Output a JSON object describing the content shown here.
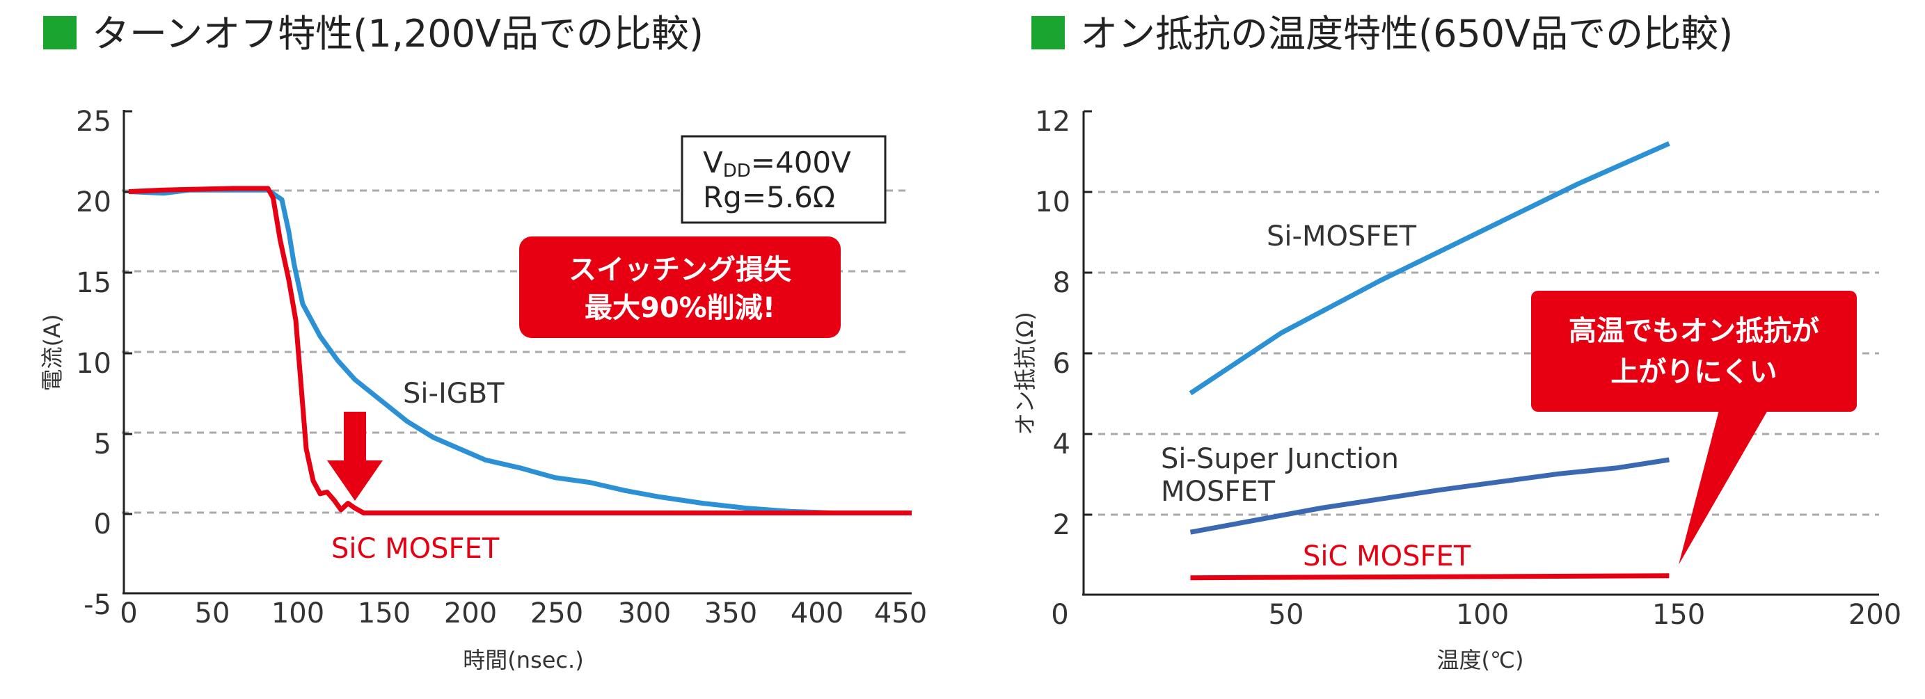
{
  "colors": {
    "green": "#1aa531",
    "blue": "#2b91d4",
    "darkblue": "#3a69b2",
    "red": "#e60012",
    "grid": "#a9a9a9"
  },
  "chart_data": [
    {
      "type": "line",
      "title": "ターンオフ特性(1,200V品での比較)",
      "xlabel": "時間(nsec.)",
      "ylabel": "電流(A)",
      "xlim": [
        0,
        450
      ],
      "ylim": [
        -5,
        25
      ],
      "x_ticks": [
        "0",
        "50",
        "100",
        "150",
        "200",
        "250",
        "300",
        "350",
        "400",
        "450"
      ],
      "y_ticks": [
        "25",
        "20",
        "15",
        "10",
        "5",
        "0",
        "-5"
      ],
      "grid": "horizontal dashed at 20, 15, 10, 5, 0",
      "series": [
        {
          "name": "Si-IGBT",
          "color": "#2b91d4",
          "points": [
            [
              0,
              20
            ],
            [
              20,
              19.9
            ],
            [
              35,
              20.1
            ],
            [
              60,
              20.1
            ],
            [
              80,
              20.1
            ],
            [
              88,
              19.5
            ],
            [
              92,
              17.5
            ],
            [
              95,
              15.5
            ],
            [
              100,
              13
            ],
            [
              110,
              11
            ],
            [
              120,
              9.5
            ],
            [
              130,
              8.3
            ],
            [
              145,
              7
            ],
            [
              160,
              5.7
            ],
            [
              175,
              4.7
            ],
            [
              190,
              4
            ],
            [
              205,
              3.3
            ],
            [
              225,
              2.8
            ],
            [
              245,
              2.2
            ],
            [
              265,
              1.9
            ],
            [
              285,
              1.4
            ],
            [
              305,
              1.0
            ],
            [
              330,
              0.6
            ],
            [
              355,
              0.3
            ],
            [
              380,
              0.1
            ],
            [
              405,
              0
            ],
            [
              450,
              0
            ]
          ]
        },
        {
          "name": "SiC MOSFET",
          "color": "#e60012",
          "points": [
            [
              0,
              20
            ],
            [
              20,
              20.1
            ],
            [
              60,
              20.2
            ],
            [
              80,
              20.2
            ],
            [
              83,
              19.6
            ],
            [
              87,
              17
            ],
            [
              92,
              14.5
            ],
            [
              96,
              12
            ],
            [
              99,
              8
            ],
            [
              102,
              4
            ],
            [
              106,
              2
            ],
            [
              110,
              1.2
            ],
            [
              114,
              1.3
            ],
            [
              118,
              0.8
            ],
            [
              122,
              0.2
            ],
            [
              126,
              0.6
            ],
            [
              130,
              0.3
            ],
            [
              135,
              0
            ],
            [
              145,
              0
            ],
            [
              450,
              0
            ]
          ]
        }
      ],
      "annotations": {
        "condition_line1": "V",
        "condition_sub": "DD",
        "condition_line1_rest": "=400V",
        "condition_line2": "Rg=5.6Ω",
        "callout_line1": "スイッチング損失",
        "callout_line2": "最大90%削減!"
      }
    },
    {
      "type": "line",
      "title": "オン抵抗の温度特性(650V品での比較)",
      "xlabel": "温度(℃)",
      "ylabel": "オン抵抗(Ω)",
      "xlim": [
        0,
        200
      ],
      "ylim": [
        0,
        12
      ],
      "x_ticks": [
        "0",
        "50",
        "100",
        "150",
        "200"
      ],
      "y_ticks": [
        "12",
        "10",
        "8",
        "6",
        "4",
        "2"
      ],
      "grid": "horizontal dashed at 10, 8, 6, 4, 2",
      "series": [
        {
          "name": "Si-MOSFET",
          "color": "#2b91d4",
          "points": [
            [
              27,
              5.0
            ],
            [
              50,
              6.5
            ],
            [
              75,
              7.8
            ],
            [
              100,
              9.0
            ],
            [
              125,
              10.2
            ],
            [
              148,
              11.2
            ]
          ]
        },
        {
          "name": "Si-Super Junction MOSFET",
          "color": "#3a69b2",
          "points": [
            [
              27,
              1.55
            ],
            [
              60,
              2.15
            ],
            [
              90,
              2.6
            ],
            [
              120,
              3.0
            ],
            [
              135,
              3.15
            ],
            [
              148,
              3.35
            ]
          ]
        },
        {
          "name": "SiC MOSFET",
          "color": "#e60012",
          "points": [
            [
              27,
              0.42
            ],
            [
              80,
              0.44
            ],
            [
              148,
              0.47
            ]
          ]
        }
      ],
      "annotations": {
        "callout_line1": "高温でもオン抵抗が",
        "callout_line2": "上がりにくい"
      },
      "series_labels": {
        "simosfet": "Si-MOSFET",
        "sj_line1": "Si-Super Junction",
        "sj_line2": "MOSFET",
        "sic": "SiC MOSFET"
      }
    }
  ]
}
